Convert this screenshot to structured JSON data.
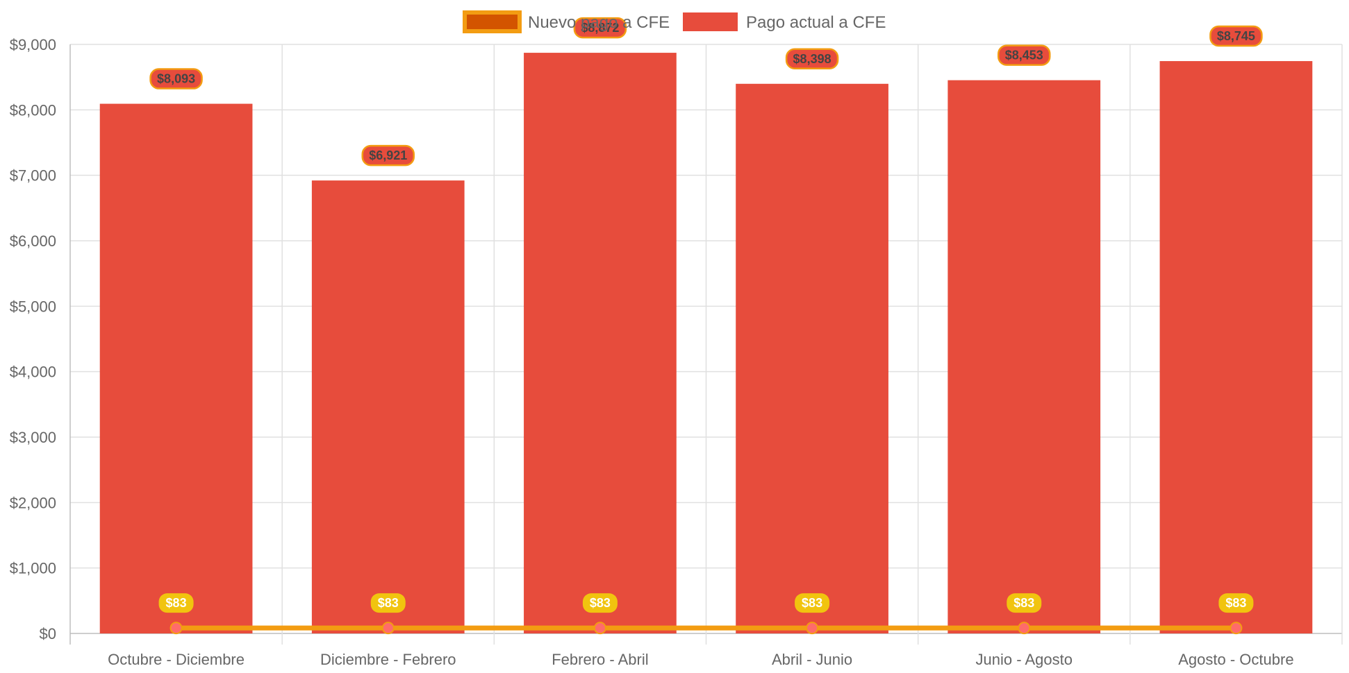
{
  "chart_data": {
    "type": "bar",
    "categories": [
      "Octubre - Diciembre",
      "Diciembre - Febrero",
      "Febrero - Abril",
      "Abril - Junio",
      "Junio - Agosto",
      "Agosto - Octubre"
    ],
    "series": [
      {
        "name": "Nuevo pago a CFE",
        "type": "line",
        "values": [
          83,
          83,
          83,
          83,
          83,
          83
        ],
        "labels": [
          "$83",
          "$83",
          "$83",
          "$83",
          "$83",
          "$83"
        ],
        "color": "#f39c12",
        "fill_color": "#d35400",
        "point_color": "#ff6b6b",
        "label_bg": "#f1c40f"
      },
      {
        "name": "Pago actual a CFE",
        "type": "bar",
        "values": [
          8093,
          6921,
          8872,
          8398,
          8453,
          8745
        ],
        "labels": [
          "$8,093",
          "$6,921",
          "$8,872",
          "$8,398",
          "$8,453",
          "$8,745"
        ],
        "color": "#e74c3c",
        "label_border": "#f39c12"
      }
    ],
    "ylim": [
      0,
      9000
    ],
    "yticks": [
      0,
      1000,
      2000,
      3000,
      4000,
      5000,
      6000,
      7000,
      8000,
      9000
    ],
    "ytick_labels": [
      "$0",
      "$1,000",
      "$2,000",
      "$3,000",
      "$4,000",
      "$5,000",
      "$6,000",
      "$7,000",
      "$8,000",
      "$9,000"
    ],
    "grid": true,
    "legend_position": "top-center",
    "title": "",
    "xlabel": "",
    "ylabel": ""
  }
}
